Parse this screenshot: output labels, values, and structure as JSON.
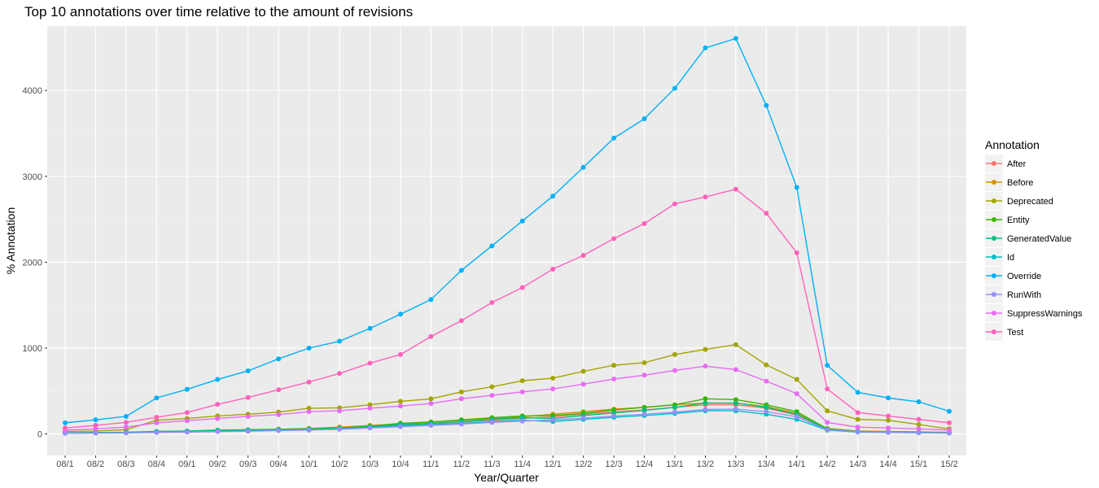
{
  "chart_data": {
    "type": "line",
    "title": "Top 10 annotations over time relative to the amount of revisions",
    "xlabel": "Year/Quarter",
    "ylabel": "% Annotation",
    "ylim": [
      -250,
      4750
    ],
    "yticks": [
      0,
      1000,
      2000,
      3000,
      4000
    ],
    "grid": true,
    "legend_placement": "right",
    "legend_title": "Annotation",
    "categories": [
      "08/1",
      "08/2",
      "08/3",
      "08/4",
      "09/1",
      "09/2",
      "09/3",
      "09/4",
      "10/1",
      "10/2",
      "10/3",
      "10/4",
      "11/1",
      "11/2",
      "11/3",
      "11/4",
      "12/1",
      "12/2",
      "12/3",
      "12/4",
      "13/1",
      "13/2",
      "13/3",
      "13/4",
      "14/1",
      "14/2",
      "14/3",
      "14/4",
      "15/1",
      "15/2"
    ],
    "series": [
      {
        "name": "After",
        "color": "#F8766D",
        "values": [
          10,
          12,
          15,
          20,
          25,
          30,
          35,
          45,
          55,
          65,
          85,
          105,
          120,
          140,
          160,
          180,
          200,
          230,
          260,
          280,
          310,
          340,
          340,
          300,
          220,
          60,
          30,
          25,
          20,
          15
        ]
      },
      {
        "name": "Before",
        "color": "#D89000",
        "values": [
          12,
          15,
          18,
          25,
          30,
          38,
          45,
          55,
          65,
          80,
          100,
          120,
          140,
          160,
          180,
          200,
          230,
          260,
          290,
          310,
          340,
          360,
          360,
          320,
          240,
          65,
          35,
          30,
          25,
          20
        ]
      },
      {
        "name": "Deprecated",
        "color": "#A3A500",
        "values": [
          30,
          35,
          50,
          160,
          180,
          210,
          230,
          255,
          300,
          305,
          340,
          380,
          410,
          490,
          550,
          620,
          650,
          730,
          800,
          830,
          925,
          985,
          1040,
          805,
          635,
          270,
          170,
          160,
          110,
          60
        ]
      },
      {
        "name": "Entity",
        "color": "#39B600",
        "values": [
          15,
          18,
          20,
          30,
          35,
          45,
          50,
          55,
          60,
          70,
          90,
          125,
          140,
          165,
          190,
          210,
          215,
          240,
          280,
          310,
          340,
          410,
          400,
          340,
          260,
          60,
          30,
          25,
          20,
          15
        ]
      },
      {
        "name": "GeneratedValue",
        "color": "#00BF7D",
        "values": [
          12,
          15,
          18,
          28,
          32,
          40,
          45,
          50,
          55,
          65,
          85,
          110,
          125,
          145,
          170,
          190,
          180,
          215,
          245,
          275,
          310,
          360,
          360,
          310,
          230,
          55,
          28,
          22,
          18,
          12
        ]
      },
      {
        "name": "Id",
        "color": "#00BFC4",
        "values": [
          10,
          12,
          15,
          22,
          28,
          35,
          40,
          45,
          50,
          60,
          75,
          95,
          110,
          125,
          145,
          160,
          145,
          170,
          195,
          215,
          240,
          270,
          270,
          230,
          170,
          45,
          22,
          18,
          14,
          10
        ]
      },
      {
        "name": "Override",
        "color": "#00B0F6",
        "values": [
          130,
          165,
          205,
          420,
          520,
          635,
          735,
          875,
          1000,
          1080,
          1230,
          1395,
          1565,
          1905,
          2190,
          2480,
          2770,
          3105,
          3445,
          3670,
          4025,
          4495,
          4605,
          3825,
          2870,
          800,
          485,
          420,
          375,
          265
        ]
      },
      {
        "name": "RunWith",
        "color": "#9590FF",
        "values": [
          8,
          10,
          12,
          18,
          22,
          28,
          32,
          40,
          45,
          55,
          70,
          85,
          100,
          115,
          135,
          150,
          165,
          185,
          210,
          230,
          255,
          285,
          290,
          260,
          200,
          50,
          25,
          20,
          15,
          10
        ]
      },
      {
        "name": "SuppressWarnings",
        "color": "#E76BF3",
        "values": [
          45,
          60,
          80,
          130,
          155,
          180,
          205,
          225,
          260,
          270,
          300,
          325,
          355,
          410,
          450,
          490,
          525,
          580,
          640,
          685,
          740,
          790,
          750,
          615,
          470,
          135,
          80,
          70,
          60,
          45
        ]
      },
      {
        "name": "Test",
        "color": "#FF62BC",
        "values": [
          70,
          100,
          135,
          195,
          250,
          345,
          425,
          515,
          605,
          705,
          825,
          925,
          1135,
          1320,
          1530,
          1705,
          1920,
          2080,
          2275,
          2450,
          2680,
          2760,
          2850,
          2570,
          2110,
          525,
          250,
          210,
          170,
          130
        ]
      }
    ]
  }
}
